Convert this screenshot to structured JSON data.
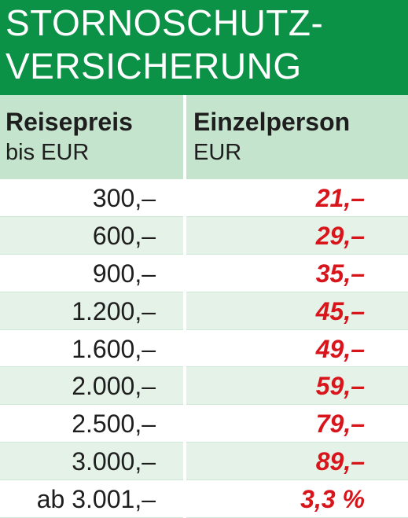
{
  "title": {
    "line1": "STORNOSCHUTZ-",
    "line2": "VERSICHERUNG"
  },
  "header": {
    "col1_line1": "Reisepreis",
    "col1_line2": "bis EUR",
    "col2_line1": "Einzelperson",
    "col2_line2": "EUR"
  },
  "rows": [
    {
      "price": "300,–",
      "fee": "21,–"
    },
    {
      "price": "600,–",
      "fee": "29,–"
    },
    {
      "price": "900,–",
      "fee": "35,–"
    },
    {
      "price": "1.200,–",
      "fee": "45,–"
    },
    {
      "price": "1.600,–",
      "fee": "49,–"
    },
    {
      "price": "2.000,–",
      "fee": "59,–"
    },
    {
      "price": "2.500,–",
      "fee": "79,–"
    },
    {
      "price": "3.000,–",
      "fee": "89,–"
    },
    {
      "price": "ab 3.001,–",
      "fee": "3,3 %"
    }
  ],
  "colors": {
    "title_bg": "#0c9247",
    "header_bg": "#c5e4cd",
    "alt_row_bg": "#e5f2e8",
    "fee_text": "#d9151c"
  }
}
